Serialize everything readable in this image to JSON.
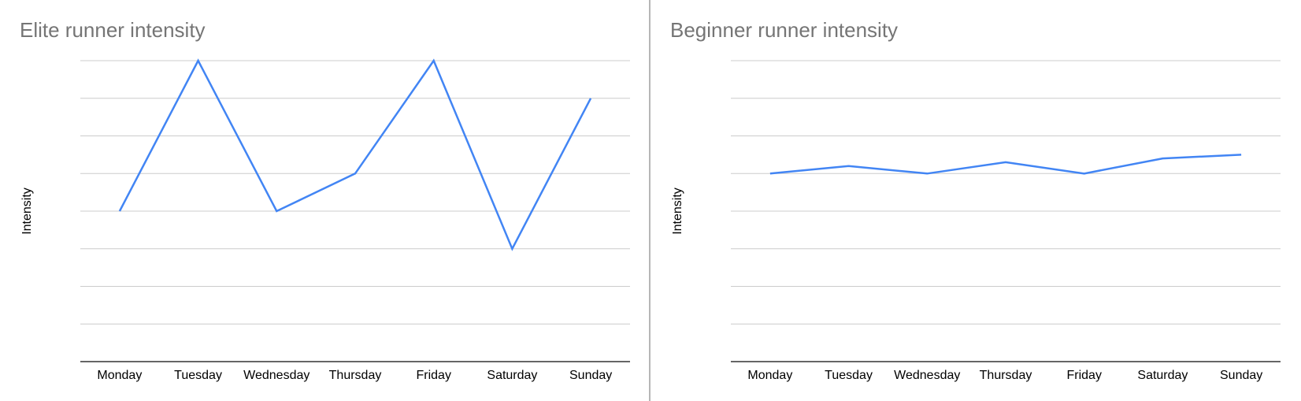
{
  "chart_data": [
    {
      "type": "line",
      "title": "Elite runner intensity",
      "xlabel": "",
      "ylabel": "Intensity",
      "categories": [
        "Monday",
        "Tuesday",
        "Wednesday",
        "Thursday",
        "Friday",
        "Saturday",
        "Sunday"
      ],
      "series": [
        {
          "values": [
            4,
            8,
            4,
            5,
            8,
            3,
            7
          ]
        }
      ],
      "ylim": [
        0,
        8
      ],
      "y_gridlines": 8,
      "y_tick_labels_shown": false,
      "grid": true,
      "legend": "none"
    },
    {
      "type": "line",
      "title": "Beginner runner intensity",
      "xlabel": "",
      "ylabel": "Intensity",
      "categories": [
        "Monday",
        "Tuesday",
        "Wednesday",
        "Thursday",
        "Friday",
        "Saturday",
        "Sunday"
      ],
      "series": [
        {
          "values": [
            5,
            5.2,
            5,
            5.3,
            5,
            5.4,
            5.5
          ]
        }
      ],
      "ylim": [
        0,
        8
      ],
      "y_gridlines": 8,
      "y_tick_labels_shown": false,
      "grid": true,
      "legend": "none"
    }
  ],
  "colors": {
    "series_line": "#4285f4",
    "title_text": "#757575",
    "gridline": "#cccccc",
    "baseline": "#333333",
    "divider": "#9e9e9e"
  }
}
